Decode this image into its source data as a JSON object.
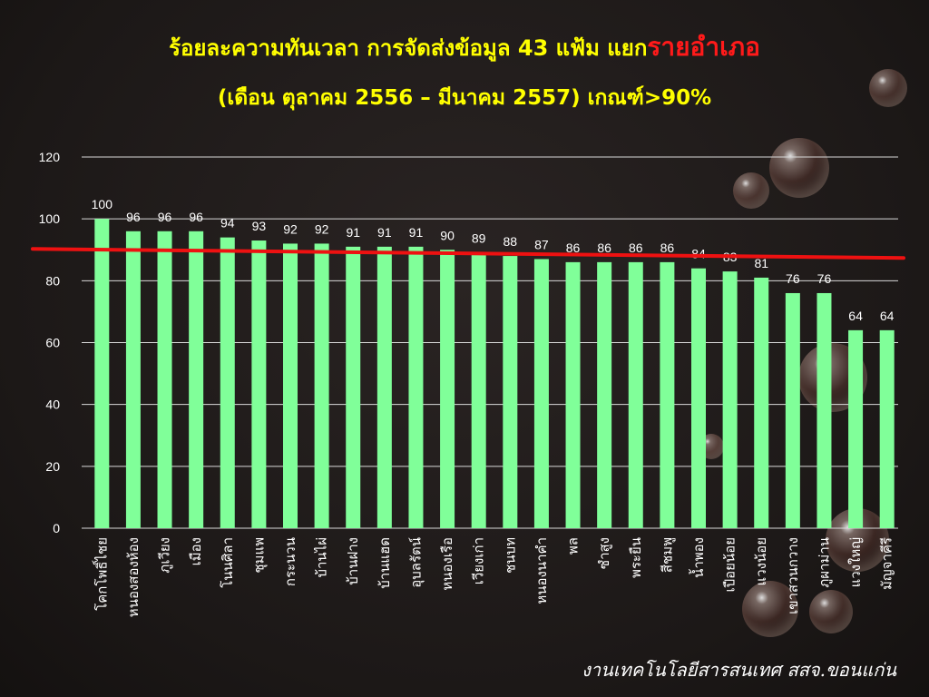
{
  "slide": {
    "title_part1": "ร้อยละความทันเวลา การจัดส่งข้อมูล 43 แฟ้ม แยก",
    "title_highlight": "รายอำเภอ",
    "subtitle": "(เดือน ตุลาคม 2556 – มีนาคม 2557) เกณฑ์>90%",
    "footer": "งานเทคโนโลยีสารสนเทศ สสจ.ขอนแก่น"
  },
  "colors": {
    "bar": "#80ff99",
    "target_line": "#ee1111",
    "label": "#ffffff",
    "grid": "#d9d9d9",
    "title": "#ffff00",
    "highlight": "#ff1a1a"
  },
  "chart_data": {
    "type": "bar",
    "title": "ร้อยละความทันเวลา การจัดส่งข้อมูล 43 แฟ้ม แยกรายอำเภอ",
    "xlabel": "",
    "ylabel": "",
    "ylim": [
      0,
      120
    ],
    "yticks": [
      0,
      20,
      40,
      60,
      80,
      100,
      120
    ],
    "grid": true,
    "legend": "none",
    "target": 90,
    "target_label": "เกณฑ์>90%",
    "categories": [
      "โคกโพธิ์ไชย",
      "หนองสองห้อง",
      "ภูเวียง",
      "เมือง",
      "โนนศิลา",
      "ชุมแพ",
      "กระนวน",
      "บ้านไผ่",
      "บ้านฝาง",
      "บ้านแฮด",
      "อุบลรัตน์",
      "หนองเรือ",
      "เวียงเก่า",
      "ชนบท",
      "หนองนาคำ",
      "พล",
      "ซำสูง",
      "พระยืน",
      "สีชมพู",
      "น้ำพอง",
      "เปือยน้อย",
      "แวงน้อย",
      "เขาสวนกวาง",
      "ภูผาม่าน",
      "แวงใหญ่",
      "มัญจาคีรี"
    ],
    "values": [
      100,
      96,
      96,
      96,
      94,
      93,
      92,
      92,
      91,
      91,
      91,
      90,
      89,
      88,
      87,
      86,
      86,
      86,
      86,
      84,
      83,
      81,
      76,
      76,
      64,
      64
    ],
    "labels": [
      "100",
      "96",
      "96",
      "96",
      "94",
      "93",
      "92",
      "92",
      "91",
      "91",
      "91",
      "90",
      "89",
      "88",
      "87",
      "86",
      "86",
      "86",
      "86",
      "84",
      "83",
      "81",
      "76",
      "76",
      "64",
      "64"
    ]
  }
}
